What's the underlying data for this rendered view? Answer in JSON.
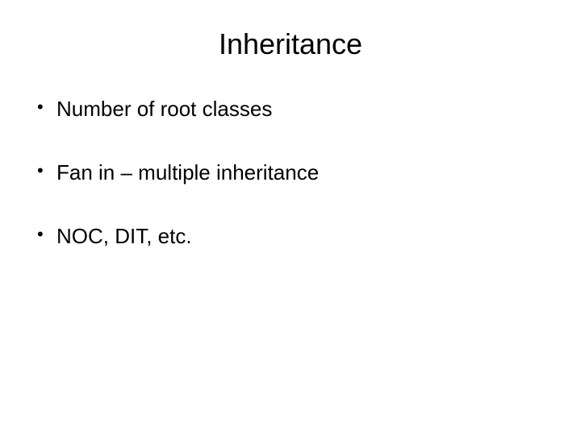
{
  "slide": {
    "title": "Inheritance",
    "title_fontsize": 36,
    "bullets": [
      "Number of root classes",
      "Fan in – multiple inheritance",
      "NOC, DIT, etc."
    ],
    "bullet_fontsize": 26,
    "background_color": "#ffffff",
    "text_color": "#000000"
  }
}
